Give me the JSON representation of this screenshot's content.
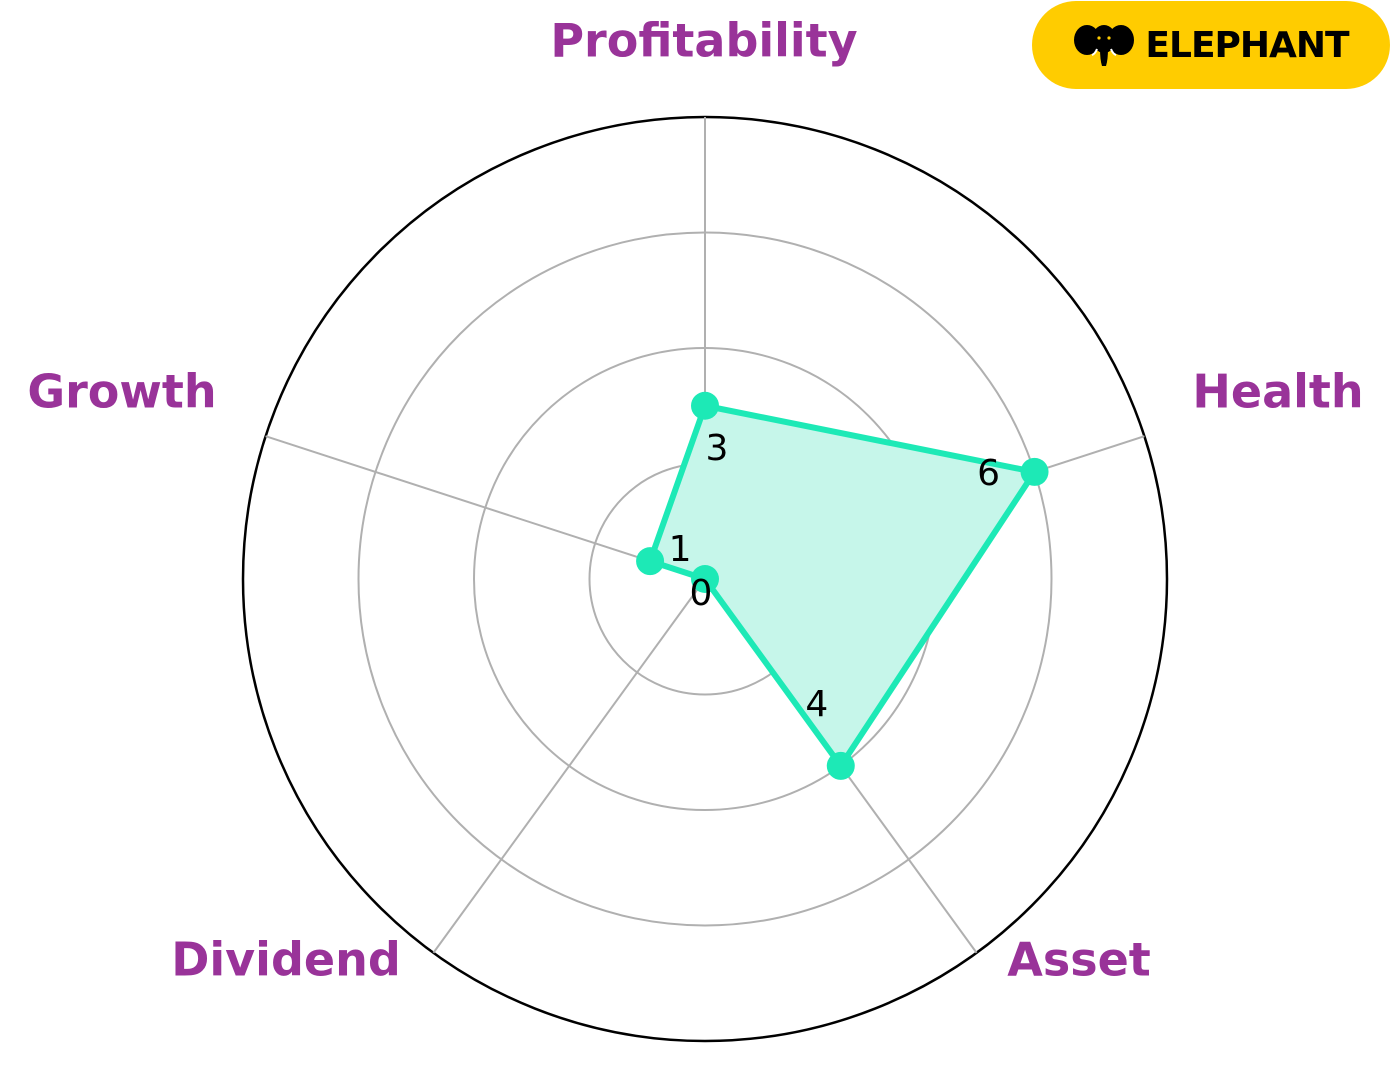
{
  "chart_data": {
    "type": "radar",
    "axes": [
      "Profitability",
      "Health",
      "Asset",
      "Dividend",
      "Growth"
    ],
    "values": [
      3,
      6,
      4,
      0,
      1
    ],
    "value_labels": [
      "3",
      "6",
      "4",
      "0",
      "1"
    ],
    "rlim": [
      0,
      8
    ],
    "grid_rings": [
      2,
      4,
      6,
      8
    ],
    "grid": true,
    "colors": {
      "series": "#1de9b6",
      "fill": "#c6f6ea",
      "grid": "#b0b0b0",
      "frame": "#000000",
      "axis_label": "#993399"
    }
  },
  "logo": {
    "text": "ELEPHANT",
    "icon": "elephant-icon",
    "background": "#ffcc00"
  }
}
